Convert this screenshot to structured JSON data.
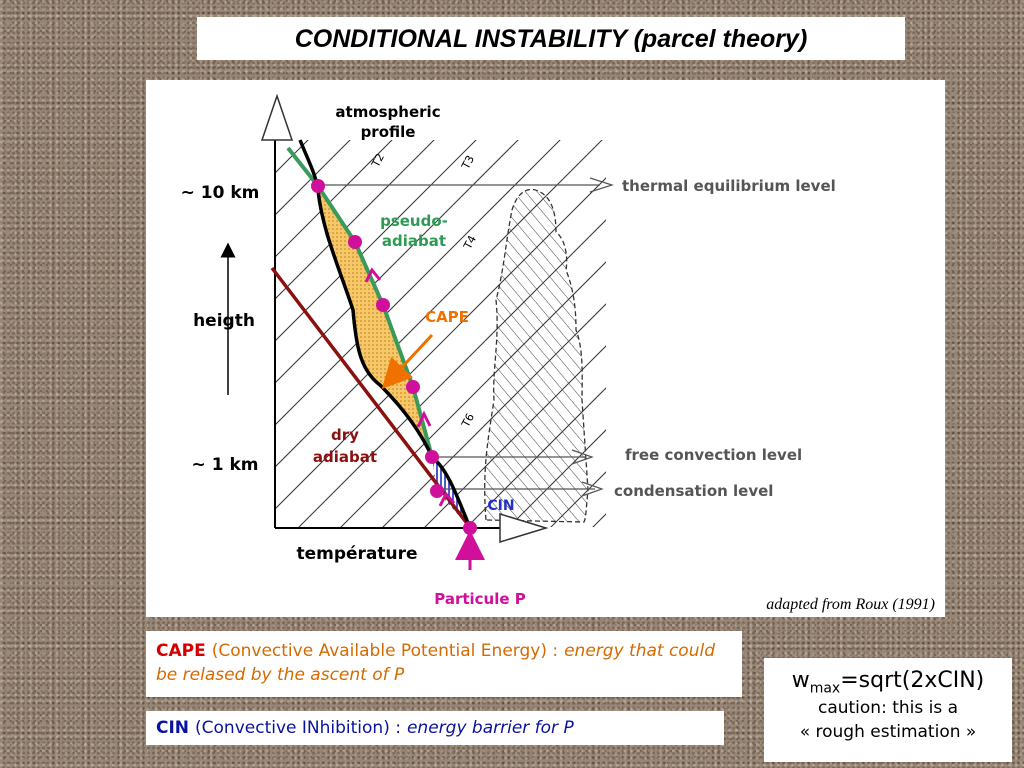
{
  "title": "CONDITIONAL INSTABILITY (parcel theory)",
  "diagram": {
    "profile_label": [
      "atmospheric",
      "profile"
    ],
    "isotherms": [
      "T2",
      "T3",
      "T4",
      "T6"
    ],
    "height_labels": {
      "top": "~ 10 km",
      "axis": "heigth",
      "bottom": "~ 1 km"
    },
    "pseudo_adiabat": [
      "pseudo-",
      "adiabat"
    ],
    "cape": "CAPE",
    "dry_adiabat": [
      "dry",
      "adiabat"
    ],
    "cin": "CIN",
    "x_axis": "température",
    "parcel": "Particule P",
    "levels": [
      "thermal equilibrium level",
      "free convection level",
      "condensation level"
    ],
    "source": "adapted from Roux (1991)"
  },
  "notes": [
    {
      "term": "CAPE",
      "expansion": "(Convective Available Potential Energy) :",
      "definition": "energy that could be relased by the ascent of P"
    },
    {
      "term": "CIN",
      "expansion": "(Convective INhibition) :",
      "definition": "energy barrier for P"
    }
  ],
  "formula": {
    "symbol": "w",
    "subscript": "max",
    "expression": "=sqrt(2xCIN)",
    "caution": [
      "caution: this is a",
      "« rough estimation »"
    ]
  }
}
